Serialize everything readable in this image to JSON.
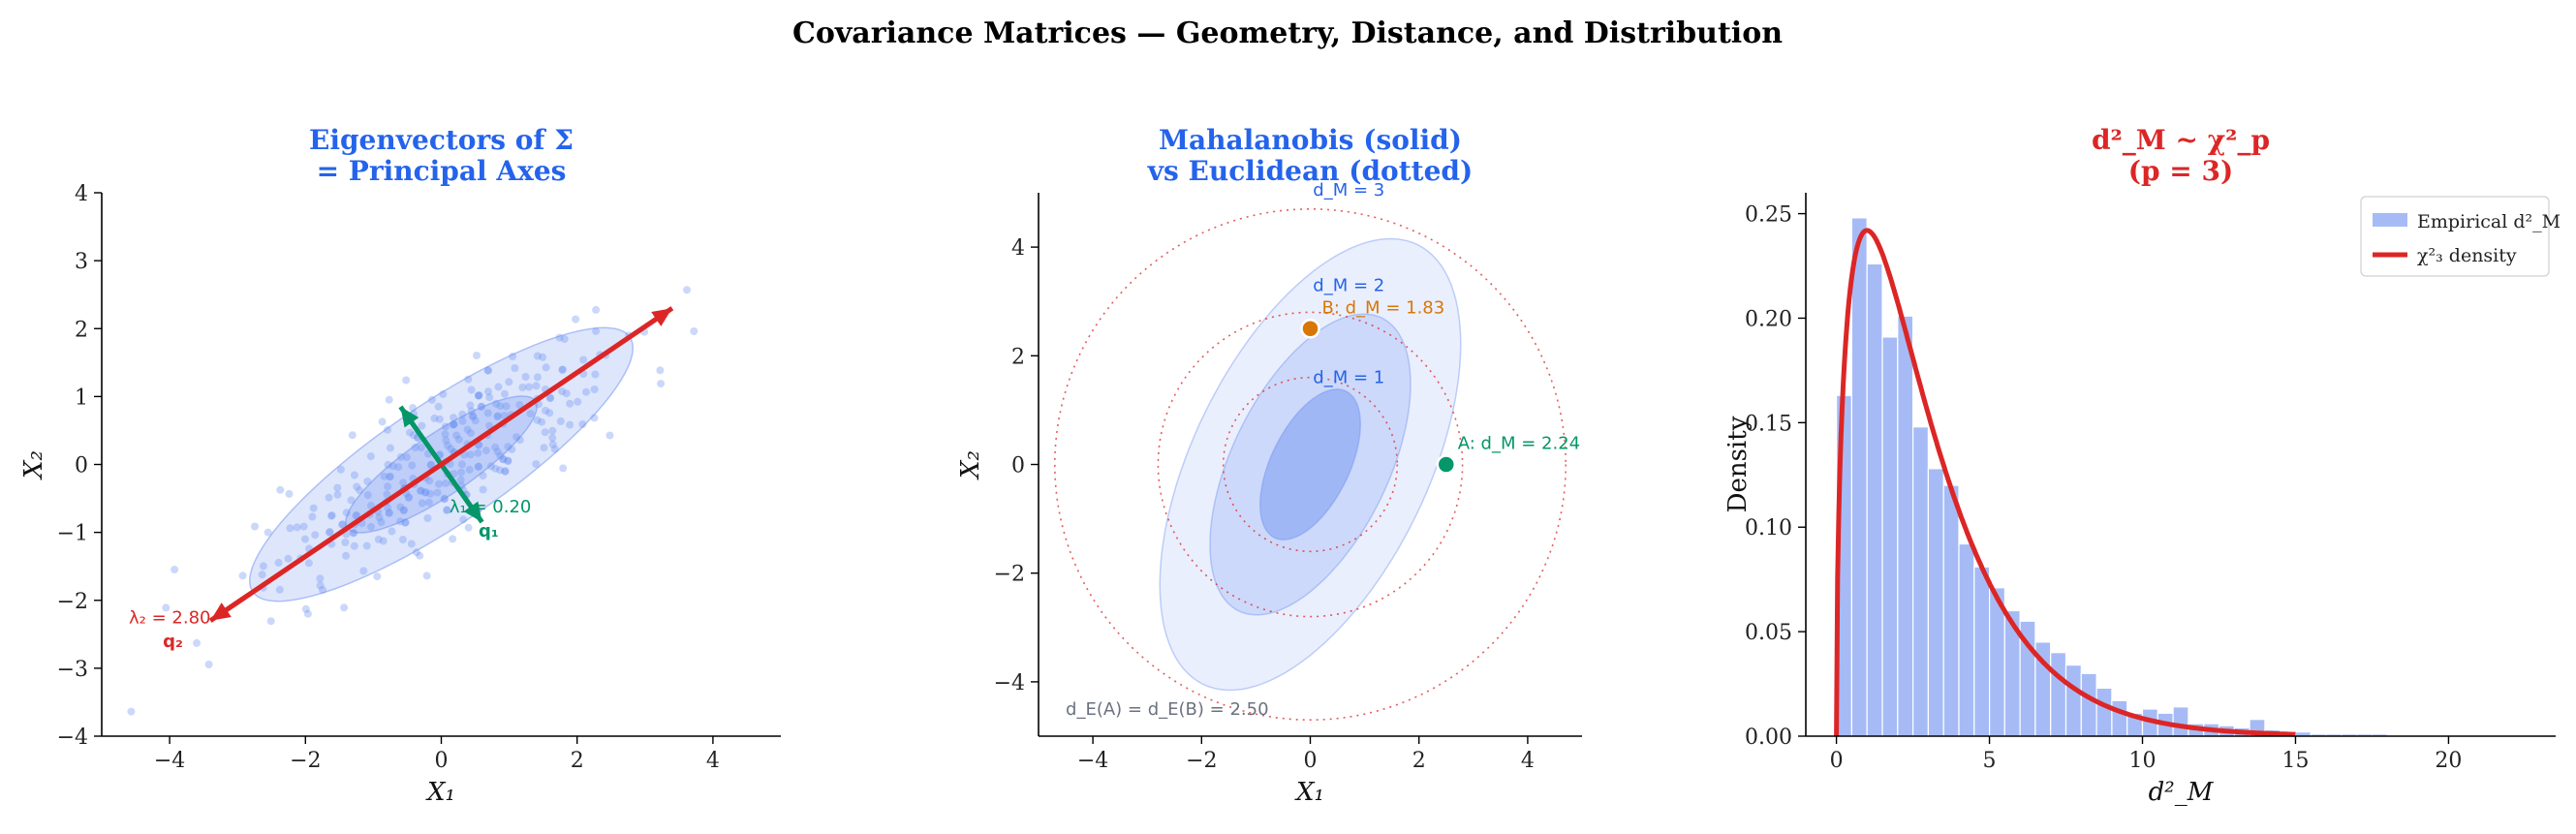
{
  "figure": {
    "suptitle": "Covariance Matrices — Geometry, Distance, and Distribution"
  },
  "colors": {
    "blue_title": "#2563eb",
    "red": "#dc2626",
    "green": "#059669",
    "orange": "#d97706",
    "fill_blue": "#6b8ef0",
    "gray": "#6b7280"
  },
  "chart_data": [
    {
      "type": "scatter",
      "title_lines": [
        "Eigenvectors of Σ",
        "= Principal Axes"
      ],
      "xlabel": "X₁",
      "ylabel": "X₂",
      "xlim": [
        -5,
        5
      ],
      "ylim": [
        -4,
        4
      ],
      "xticks": [
        -4,
        -2,
        0,
        2,
        4
      ],
      "yticks": [
        -4,
        -3,
        -2,
        -1,
        0,
        1,
        2,
        3,
        4
      ],
      "ellipses": [
        {
          "n_sigma": 1,
          "angle_deg": 34,
          "semi_major": 1.67,
          "semi_minor": 0.45
        },
        {
          "n_sigma": 2,
          "angle_deg": 34,
          "semi_major": 3.35,
          "semi_minor": 0.89
        }
      ],
      "eigen_arrows": [
        {
          "label_lambda": "λ₁ = 0.20",
          "label_vec": "q₁",
          "from": [
            -0.6,
            0.85
          ],
          "to": [
            0.6,
            -0.85
          ],
          "color": "green"
        },
        {
          "label_lambda": "λ₂ = 2.80",
          "label_vec": "q₂",
          "from": [
            -3.4,
            -2.3
          ],
          "to": [
            3.4,
            2.3
          ],
          "color": "red"
        }
      ],
      "grid": false
    },
    {
      "type": "contour",
      "title_lines": [
        "Mahalanobis (solid)",
        "vs Euclidean (dotted)"
      ],
      "xlabel": "X₁",
      "ylabel": "X₂",
      "xlim": [
        -5,
        5
      ],
      "ylim": [
        -5,
        5
      ],
      "xticks": [
        -4,
        -2,
        0,
        2,
        4
      ],
      "yticks": [
        -4,
        -2,
        0,
        2,
        4
      ],
      "mahalanobis_contours": [
        {
          "label": "d_M = 1",
          "d": 1
        },
        {
          "label": "d_M = 2",
          "d": 2
        },
        {
          "label": "d_M = 3",
          "d": 3
        }
      ],
      "euclidean_radii": [
        1.6,
        2.8,
        4.7
      ],
      "points": [
        {
          "name": "A",
          "x": 2.5,
          "y": 0,
          "label": "A: d_M = 2.24",
          "color": "green"
        },
        {
          "name": "B",
          "x": 0,
          "y": 2.5,
          "label": "B: d_M = 1.83",
          "color": "orange"
        }
      ],
      "note": "d_E(A) = d_E(B) = 2.50",
      "grid": false
    },
    {
      "type": "histogram",
      "title_lines": [
        "d²_M ~ χ²_p",
        "(p = 3)"
      ],
      "xlabel": "d²_M",
      "ylabel": "Density",
      "xlim": [
        -1,
        23.5
      ],
      "ylim": [
        0,
        0.26
      ],
      "xticks": [
        0,
        5,
        10,
        15,
        20
      ],
      "yticks": [
        0.0,
        0.05,
        0.1,
        0.15,
        0.2,
        0.25
      ],
      "bin_width": 0.5,
      "bin_start": 0,
      "hist_values": [
        0.163,
        0.248,
        0.226,
        0.191,
        0.201,
        0.148,
        0.128,
        0.12,
        0.092,
        0.081,
        0.071,
        0.06,
        0.055,
        0.045,
        0.04,
        0.034,
        0.03,
        0.023,
        0.017,
        0.011,
        0.013,
        0.011,
        0.014,
        0.006,
        0.006,
        0.005,
        0.004,
        0.008,
        0.003,
        0.002,
        0.002,
        0.001,
        0.001,
        0.001,
        0.001,
        0.001
      ],
      "density": {
        "df": 3,
        "x_max": 15
      },
      "legend": {
        "position": "top-right",
        "entries": [
          {
            "label": "Empirical d²_M",
            "kind": "patch"
          },
          {
            "label": "χ²₃ density",
            "kind": "line"
          }
        ]
      },
      "grid": false
    }
  ]
}
